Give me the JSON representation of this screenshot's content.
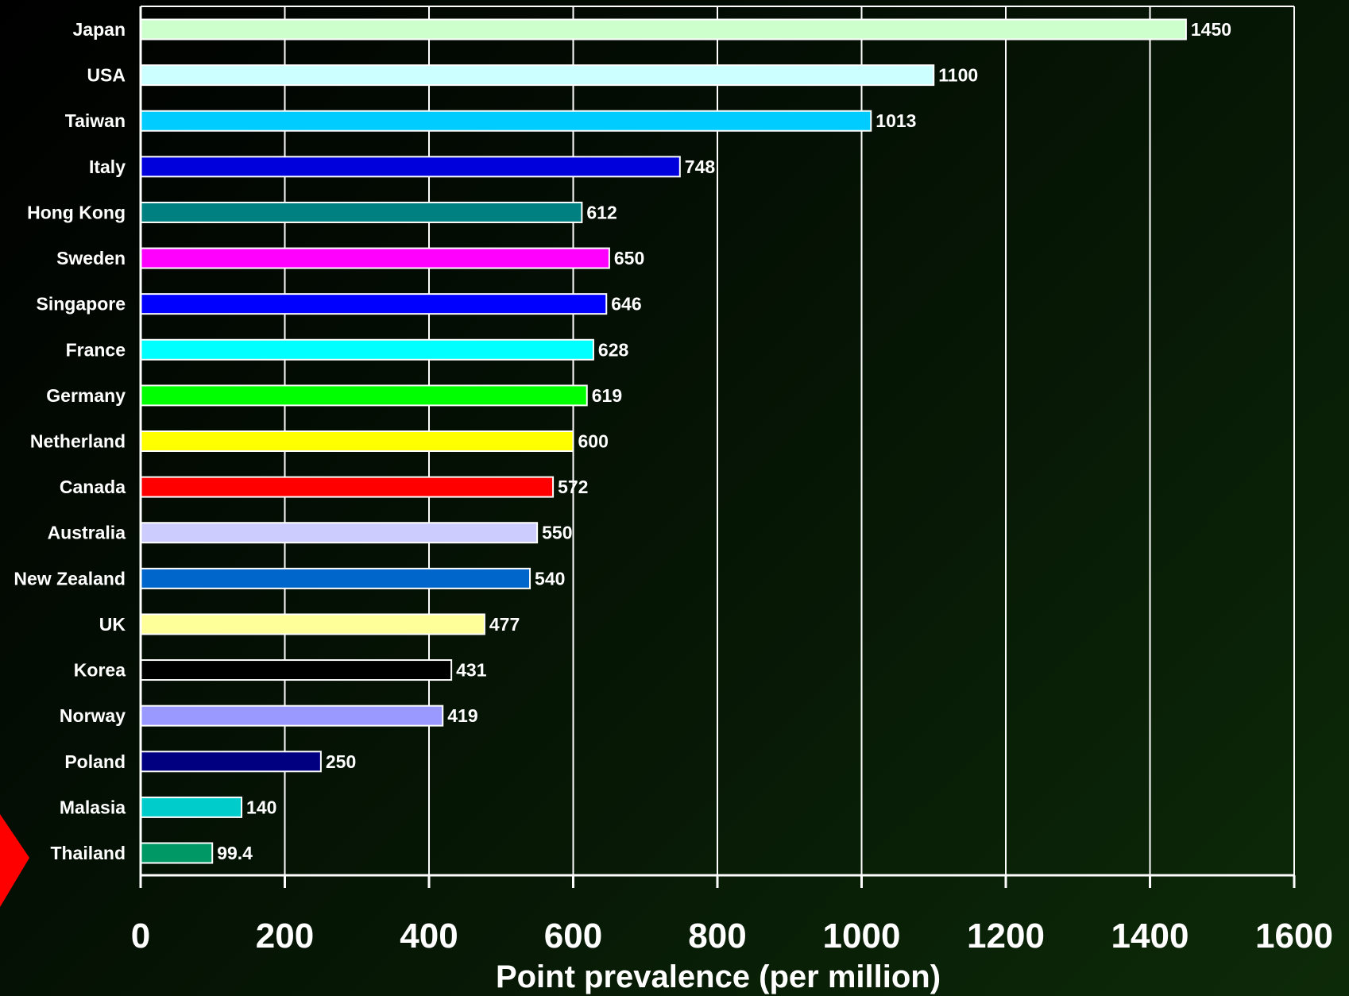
{
  "chart_data": {
    "type": "bar",
    "orientation": "horizontal",
    "categories": [
      "Japan",
      "USA",
      "Taiwan",
      "Italy",
      "Hong Kong",
      "Sweden",
      "Singapore",
      "France",
      "Germany",
      "Netherland",
      "Canada",
      "Australia",
      "New Zealand",
      "UK",
      "Korea",
      "Norway",
      "Poland",
      "Malasia",
      "Thailand"
    ],
    "values": [
      1450,
      1100,
      1013,
      748,
      612,
      650,
      646,
      628,
      619,
      600,
      572,
      550,
      540,
      477,
      431,
      419,
      250,
      140,
      99.4
    ],
    "value_labels": [
      "1450",
      "1100",
      "1013",
      "748",
      "612",
      "650",
      "646",
      "628",
      "619",
      "600",
      "572",
      "550",
      "540",
      "477",
      "431",
      "419",
      "250",
      "140",
      "99.4"
    ],
    "bar_colors": [
      "#ccffcc",
      "#ccffff",
      "#00ccff",
      "#0000dd",
      "#008080",
      "#ff00ff",
      "#0000ff",
      "#00ffff",
      "#00ff00",
      "#ffff00",
      "#ff0000",
      "#ccccff",
      "#0066cc",
      "#ffff99",
      "#000000",
      "#9999ff",
      "#000080",
      "#00cccc",
      "#009966"
    ],
    "xlabel": "Point prevalence (per million)",
    "ylabel": "",
    "title": "",
    "xlim": [
      0,
      1600
    ],
    "xticks": [
      0,
      200,
      400,
      600,
      800,
      1000,
      1200,
      1400,
      1600
    ],
    "xtick_labels": [
      "0",
      "200",
      "400",
      "600",
      "800",
      "1000",
      "1200",
      "1400",
      "1600"
    ],
    "grid": "vertical",
    "highlighted_category": "Thailand",
    "highlight_color": "#ff0000"
  }
}
